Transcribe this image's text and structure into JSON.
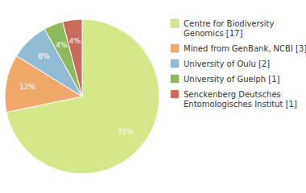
{
  "chart_data": {
    "type": "pie",
    "categories": [
      "Centre for Biodiversity\nGenomics [17]",
      "Mined from GenBank, NCBI [3]",
      "University of Oulu [2]",
      "University of Guelph [1]",
      "Senckenberg Deutsches\nEntomologisches Institut [1]"
    ],
    "values": [
      71,
      12,
      8,
      4,
      4
    ],
    "value_labels": [
      "71%",
      "12%",
      "8%",
      "4%",
      "4%"
    ],
    "colors": [
      "#d4e88a",
      "#f0a96b",
      "#92bcd4",
      "#8eba5e",
      "#c96a5a"
    ],
    "data_labels": true,
    "legend": "right"
  }
}
